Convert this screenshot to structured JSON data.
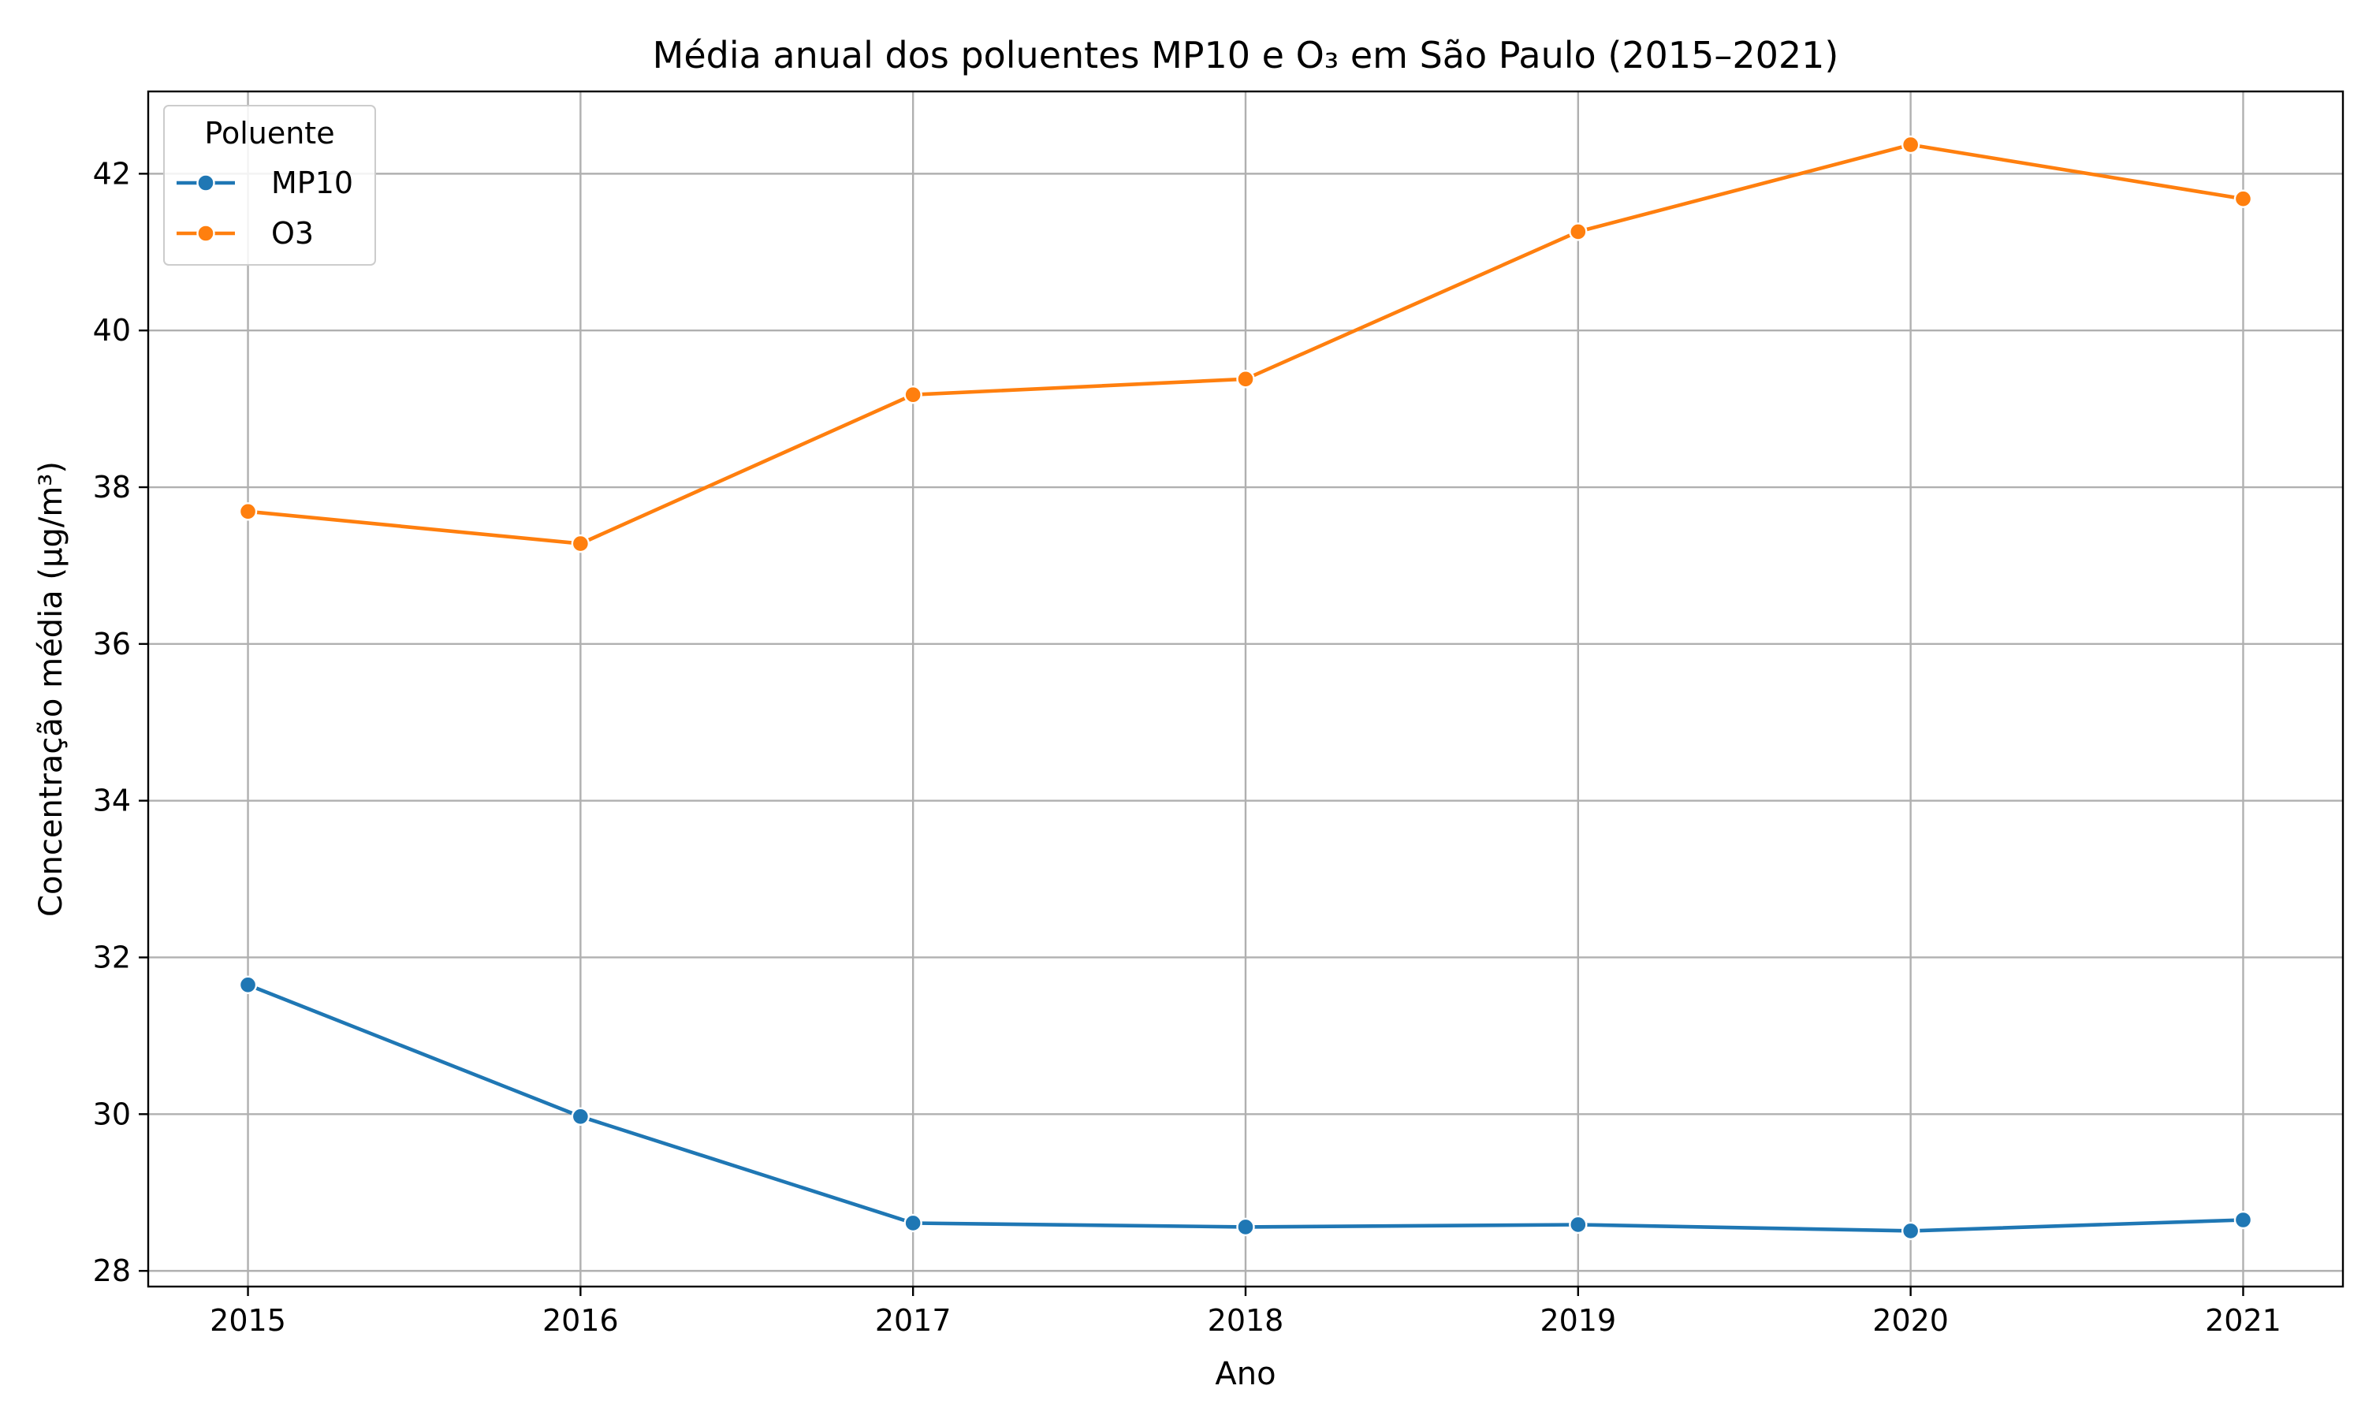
{
  "chart_data": {
    "type": "line",
    "title": "Média anual dos poluentes MP10 e O₃ em São Paulo (2015–2021)",
    "xlabel": "Ano",
    "ylabel": "Concentração média (µg/m³)",
    "x": [
      "2015",
      "2016",
      "2017",
      "2018",
      "2019",
      "2020",
      "2021"
    ],
    "ylim": [
      27.8,
      43.05
    ],
    "yticks": [
      28,
      30,
      32,
      34,
      36,
      38,
      40,
      42
    ],
    "grid": true,
    "legend": {
      "title": "Poluente",
      "placement": "top-left"
    },
    "series": [
      {
        "name": "MP10",
        "color": "#1f77b4",
        "values": [
          31.65,
          29.97,
          28.61,
          28.56,
          28.59,
          28.51,
          28.65
        ]
      },
      {
        "name": "O3",
        "color": "#ff7f0e",
        "values": [
          37.69,
          37.28,
          39.18,
          39.38,
          41.26,
          42.37,
          41.68
        ]
      }
    ]
  }
}
